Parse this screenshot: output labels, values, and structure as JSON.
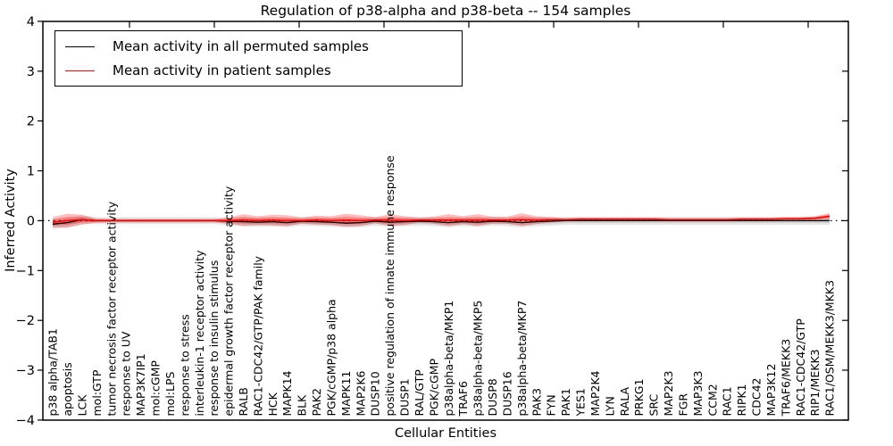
{
  "figure": {
    "background": "#ffffff",
    "accent_red": "#ff0000",
    "line_black": "#000000"
  },
  "chart_data": {
    "type": "line",
    "title": "Regulation of p38-alpha and p38-beta -- 154 samples",
    "xlabel": "Cellular Entities",
    "ylabel": "Inferred Activity",
    "ylim": [
      -4,
      4
    ],
    "yticks": [
      -4,
      -3,
      -2,
      -1,
      0,
      1,
      2,
      3,
      4
    ],
    "grid": false,
    "legend_position": "upper left",
    "zero_line_style": "dotted",
    "categories": [
      "p38 alpha/TAB1",
      "apoptosis",
      "LCK",
      "mol:GTP",
      "tumor necrosis factor receptor activity",
      "response to UV",
      "MAP3K7IP1",
      "mol:cGMP",
      "mol:LPS",
      "response to stress",
      "interleukin-1 receptor activity",
      "response to insulin stimulus",
      "epidermal growth factor receptor activity",
      "RALB",
      "RAC1-CDC42/GTP/PAK family",
      "HCK",
      "MAPK14",
      "BLK",
      "PAK2",
      "PGK/cGMP/p38 alpha",
      "MAPK11",
      "MAP2K6",
      "DUSP10",
      "positive regulation of innate immune response",
      "DUSP1",
      "RAL/GTP",
      "PGK/cGMP",
      "p38alpha-beta/MKP1",
      "TRAF6",
      "p38alpha-beta/MKP5",
      "DUSP8",
      "DUSP16",
      "p38alpha-beta/MKP7",
      "PAK3",
      "FYN",
      "PAK1",
      "YES1",
      "MAP2K4",
      "LYN",
      "RALA",
      "PRKG1",
      "SRC",
      "MAP2K3",
      "FGR",
      "MAP3K3",
      "CCM2",
      "RAC1",
      "RIPK1",
      "CDC42",
      "MAP3K12",
      "TRAF6/MEKK3",
      "RAC1-CDC42/GTP",
      "RIP1/MEKK3",
      "RAC1/OSM/MEKK3/MKK3"
    ],
    "series": [
      {
        "name": "Mean activity in all permuted samples",
        "color": "#000000",
        "band_color": "rgba(0,0,0,0.10)",
        "values": [
          -0.07,
          -0.04,
          0.02,
          0,
          0,
          0,
          0,
          0,
          0,
          0,
          0,
          0,
          -0.01,
          -0.02,
          -0.03,
          -0.02,
          -0.04,
          -0.01,
          -0.02,
          -0.03,
          -0.05,
          -0.04,
          -0.01,
          -0.03,
          -0.02,
          -0.01,
          -0.02,
          -0.04,
          -0.02,
          -0.03,
          -0.01,
          -0.02,
          -0.04,
          -0.02,
          -0.01,
          0,
          0,
          0,
          0,
          0,
          0,
          0,
          0,
          0,
          0,
          0,
          0,
          0,
          0,
          0,
          0,
          0,
          0,
          0
        ],
        "band_halfwidth": [
          0.1,
          0.1,
          0.09,
          0.07,
          0.07,
          0.07,
          0.07,
          0.07,
          0.07,
          0.07,
          0.07,
          0.07,
          0.08,
          0.09,
          0.09,
          0.09,
          0.09,
          0.09,
          0.09,
          0.09,
          0.09,
          0.09,
          0.09,
          0.09,
          0.09,
          0.09,
          0.09,
          0.09,
          0.09,
          0.09,
          0.09,
          0.09,
          0.09,
          0.09,
          0.09,
          0.08,
          0.08,
          0.08,
          0.08,
          0.08,
          0.08,
          0.08,
          0.08,
          0.08,
          0.08,
          0.08,
          0.08,
          0.08,
          0.08,
          0.08,
          0.08,
          0.08,
          0.08,
          0.08
        ]
      },
      {
        "name": "Mean activity in patient samples",
        "color": "#ff0000",
        "band_color": "rgba(255,0,0,0.26)",
        "values": [
          -0.03,
          0,
          0.02,
          0,
          0,
          0,
          0,
          0,
          0,
          0,
          0,
          0,
          0,
          0.01,
          0,
          0.01,
          0,
          0,
          0.01,
          0,
          0.01,
          0,
          0.01,
          0.01,
          0,
          0.01,
          0.01,
          0.01,
          0.01,
          0.01,
          0.01,
          0.01,
          0.02,
          0.01,
          0.02,
          0.02,
          0.03,
          0.03,
          0.03,
          0.03,
          0.03,
          0.03,
          0.02,
          0.02,
          0.02,
          0.02,
          0.02,
          0.03,
          0.03,
          0.03,
          0.04,
          0.04,
          0.05,
          0.09
        ],
        "band_halfwidth": [
          0.1,
          0.14,
          0.1,
          0.04,
          0.03,
          0.03,
          0.03,
          0.03,
          0.03,
          0.03,
          0.03,
          0.03,
          0.06,
          0.12,
          0.09,
          0.11,
          0.11,
          0.06,
          0.09,
          0.09,
          0.13,
          0.11,
          0.06,
          0.12,
          0.09,
          0.05,
          0.07,
          0.12,
          0.08,
          0.12,
          0.07,
          0.07,
          0.13,
          0.08,
          0.05,
          0.03,
          0.03,
          0.03,
          0.03,
          0.03,
          0.03,
          0.03,
          0.03,
          0.03,
          0.03,
          0.03,
          0.03,
          0.03,
          0.03,
          0.03,
          0.03,
          0.03,
          0.04,
          0.06
        ]
      }
    ]
  }
}
